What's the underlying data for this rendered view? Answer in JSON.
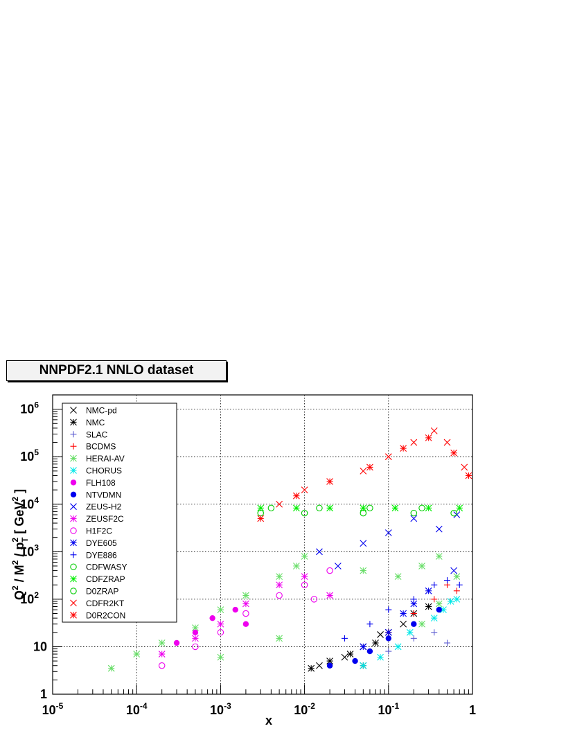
{
  "chart_data": {
    "type": "scatter",
    "title": "NNPDF2.1 NNLO dataset",
    "xlabel": "x",
    "ylabel_parts": {
      "q": "Q",
      "sq1": "2",
      "m": " / M",
      "sq2": "2",
      "p": " / p",
      "sq3": "2",
      "t": "T",
      "gev": " [ GeV",
      "sq4": "2",
      "close": " ]"
    },
    "xscale": "log",
    "yscale": "log",
    "xlim": [
      1e-05,
      1
    ],
    "ylim": [
      1,
      2000000
    ],
    "grid": true,
    "legend_position": "top-left",
    "x_tick_labels": [
      {
        "base": "10",
        "exp": "-5",
        "value": 1e-05
      },
      {
        "base": "10",
        "exp": "-4",
        "value": 0.0001
      },
      {
        "base": "10",
        "exp": "-3",
        "value": 0.001
      },
      {
        "base": "10",
        "exp": "-2",
        "value": 0.01
      },
      {
        "base": "10",
        "exp": "-1",
        "value": 0.1
      },
      {
        "base": "1",
        "exp": "",
        "value": 1
      }
    ],
    "y_tick_labels": [
      {
        "base": "1",
        "exp": "",
        "value": 1
      },
      {
        "base": "10",
        "exp": "",
        "value": 10
      },
      {
        "base": "10",
        "exp": "2",
        "value": 100
      },
      {
        "base": "10",
        "exp": "3",
        "value": 1000
      },
      {
        "base": "10",
        "exp": "4",
        "value": 10000
      },
      {
        "base": "10",
        "exp": "5",
        "value": 100000
      },
      {
        "base": "10",
        "exp": "6",
        "value": 1000000
      }
    ],
    "series": [
      {
        "name": "NMC-pd",
        "marker": "x",
        "color": "#000000"
      },
      {
        "name": "NMC",
        "marker": "star",
        "color": "#000000"
      },
      {
        "name": "SLAC",
        "marker": "plus",
        "color": "#5a5ad0"
      },
      {
        "name": "BCDMS",
        "marker": "plus",
        "color": "#ff0000"
      },
      {
        "name": "HERAI-AV",
        "marker": "star",
        "color": "#66dd66"
      },
      {
        "name": "CHORUS",
        "marker": "star",
        "color": "#00e8e8"
      },
      {
        "name": "FLH108",
        "marker": "dot",
        "color": "#ee00ee"
      },
      {
        "name": "NTVDMN",
        "marker": "dot",
        "color": "#0000ee"
      },
      {
        "name": "ZEUS-H2",
        "marker": "x",
        "color": "#0000ee"
      },
      {
        "name": "ZEUSF2C",
        "marker": "star",
        "color": "#ee00ee"
      },
      {
        "name": "H1F2C",
        "marker": "circle",
        "color": "#ee00ee"
      },
      {
        "name": "DYE605",
        "marker": "star",
        "color": "#0000ee"
      },
      {
        "name": "DYE886",
        "marker": "plus",
        "color": "#0000ee"
      },
      {
        "name": "CDFWASY",
        "marker": "circle",
        "color": "#00cc00"
      },
      {
        "name": "CDFZRAP",
        "marker": "star",
        "color": "#00ee00"
      },
      {
        "name": "D0ZRAP",
        "marker": "circle",
        "color": "#00cc00"
      },
      {
        "name": "CDFR2KT",
        "marker": "x",
        "color": "#ff0000"
      },
      {
        "name": "D0R2CON",
        "marker": "star",
        "color": "#ff0000"
      }
    ],
    "points": [
      {
        "series": 0,
        "x": 0.015,
        "y": 4
      },
      {
        "series": 0,
        "x": 0.03,
        "y": 6
      },
      {
        "series": 0,
        "x": 0.05,
        "y": 10
      },
      {
        "series": 0,
        "x": 0.08,
        "y": 18
      },
      {
        "series": 0,
        "x": 0.15,
        "y": 30
      },
      {
        "series": 1,
        "x": 0.012,
        "y": 3.5
      },
      {
        "series": 1,
        "x": 0.02,
        "y": 5
      },
      {
        "series": 1,
        "x": 0.035,
        "y": 7
      },
      {
        "series": 1,
        "x": 0.05,
        "y": 4
      },
      {
        "series": 1,
        "x": 0.07,
        "y": 12
      },
      {
        "series": 1,
        "x": 0.1,
        "y": 20
      },
      {
        "series": 1,
        "x": 0.2,
        "y": 50
      },
      {
        "series": 1,
        "x": 0.3,
        "y": 70
      },
      {
        "series": 2,
        "x": 0.1,
        "y": 8
      },
      {
        "series": 2,
        "x": 0.2,
        "y": 15
      },
      {
        "series": 2,
        "x": 0.35,
        "y": 20
      },
      {
        "series": 2,
        "x": 0.5,
        "y": 12
      },
      {
        "series": 3,
        "x": 0.1,
        "y": 20
      },
      {
        "series": 3,
        "x": 0.2,
        "y": 50
      },
      {
        "series": 3,
        "x": 0.35,
        "y": 100
      },
      {
        "series": 3,
        "x": 0.5,
        "y": 200
      },
      {
        "series": 3,
        "x": 0.65,
        "y": 150
      },
      {
        "series": 4,
        "x": 5e-05,
        "y": 3.5
      },
      {
        "series": 4,
        "x": 0.0001,
        "y": 7
      },
      {
        "series": 4,
        "x": 0.0002,
        "y": 12
      },
      {
        "series": 4,
        "x": 0.0005,
        "y": 25
      },
      {
        "series": 4,
        "x": 0.001,
        "y": 60
      },
      {
        "series": 4,
        "x": 0.002,
        "y": 120
      },
      {
        "series": 4,
        "x": 0.005,
        "y": 300
      },
      {
        "series": 4,
        "x": 0.008,
        "y": 500
      },
      {
        "series": 4,
        "x": 0.01,
        "y": 800
      },
      {
        "series": 4,
        "x": 0.05,
        "y": 400
      },
      {
        "series": 4,
        "x": 0.13,
        "y": 300
      },
      {
        "series": 4,
        "x": 0.25,
        "y": 500
      },
      {
        "series": 4,
        "x": 0.4,
        "y": 800
      },
      {
        "series": 4,
        "x": 0.65,
        "y": 300
      },
      {
        "series": 4,
        "x": 0.25,
        "y": 30
      },
      {
        "series": 4,
        "x": 0.4,
        "y": 80
      },
      {
        "series": 4,
        "x": 0.001,
        "y": 6
      },
      {
        "series": 4,
        "x": 0.005,
        "y": 15
      },
      {
        "series": 5,
        "x": 0.05,
        "y": 4
      },
      {
        "series": 5,
        "x": 0.08,
        "y": 6
      },
      {
        "series": 5,
        "x": 0.13,
        "y": 10
      },
      {
        "series": 5,
        "x": 0.18,
        "y": 20
      },
      {
        "series": 5,
        "x": 0.35,
        "y": 40
      },
      {
        "series": 5,
        "x": 0.45,
        "y": 60
      },
      {
        "series": 5,
        "x": 0.55,
        "y": 90
      },
      {
        "series": 5,
        "x": 0.65,
        "y": 100
      },
      {
        "series": 6,
        "x": 0.0003,
        "y": 12
      },
      {
        "series": 6,
        "x": 0.0005,
        "y": 20
      },
      {
        "series": 6,
        "x": 0.0008,
        "y": 40
      },
      {
        "series": 6,
        "x": 0.0015,
        "y": 60
      },
      {
        "series": 6,
        "x": 0.002,
        "y": 30
      },
      {
        "series": 7,
        "x": 0.02,
        "y": 4
      },
      {
        "series": 7,
        "x": 0.04,
        "y": 5
      },
      {
        "series": 7,
        "x": 0.06,
        "y": 8
      },
      {
        "series": 7,
        "x": 0.1,
        "y": 15
      },
      {
        "series": 7,
        "x": 0.2,
        "y": 30
      },
      {
        "series": 7,
        "x": 0.4,
        "y": 60
      },
      {
        "series": 8,
        "x": 0.015,
        "y": 1000
      },
      {
        "series": 8,
        "x": 0.025,
        "y": 500
      },
      {
        "series": 8,
        "x": 0.05,
        "y": 1500
      },
      {
        "series": 8,
        "x": 0.1,
        "y": 2500
      },
      {
        "series": 8,
        "x": 0.2,
        "y": 5000
      },
      {
        "series": 8,
        "x": 0.4,
        "y": 3000
      },
      {
        "series": 8,
        "x": 0.65,
        "y": 6000
      },
      {
        "series": 8,
        "x": 0.6,
        "y": 400
      },
      {
        "series": 9,
        "x": 0.0002,
        "y": 7
      },
      {
        "series": 9,
        "x": 0.0005,
        "y": 15
      },
      {
        "series": 9,
        "x": 0.001,
        "y": 30
      },
      {
        "series": 9,
        "x": 0.002,
        "y": 80
      },
      {
        "series": 9,
        "x": 0.005,
        "y": 200
      },
      {
        "series": 9,
        "x": 0.01,
        "y": 300
      },
      {
        "series": 9,
        "x": 0.02,
        "y": 120
      },
      {
        "series": 10,
        "x": 0.0002,
        "y": 4
      },
      {
        "series": 10,
        "x": 0.0005,
        "y": 10
      },
      {
        "series": 10,
        "x": 0.001,
        "y": 20
      },
      {
        "series": 10,
        "x": 0.002,
        "y": 50
      },
      {
        "series": 10,
        "x": 0.005,
        "y": 120
      },
      {
        "series": 10,
        "x": 0.01,
        "y": 200
      },
      {
        "series": 10,
        "x": 0.02,
        "y": 400
      },
      {
        "series": 10,
        "x": 0.013,
        "y": 100
      },
      {
        "series": 11,
        "x": 0.05,
        "y": 10
      },
      {
        "series": 11,
        "x": 0.1,
        "y": 20
      },
      {
        "series": 11,
        "x": 0.15,
        "y": 50
      },
      {
        "series": 11,
        "x": 0.2,
        "y": 80
      },
      {
        "series": 11,
        "x": 0.3,
        "y": 150
      },
      {
        "series": 12,
        "x": 0.03,
        "y": 15
      },
      {
        "series": 12,
        "x": 0.06,
        "y": 30
      },
      {
        "series": 12,
        "x": 0.1,
        "y": 60
      },
      {
        "series": 12,
        "x": 0.2,
        "y": 100
      },
      {
        "series": 12,
        "x": 0.35,
        "y": 200
      },
      {
        "series": 12,
        "x": 0.5,
        "y": 250
      },
      {
        "series": 12,
        "x": 0.7,
        "y": 200
      },
      {
        "series": 13,
        "x": 0.003,
        "y": 6500
      },
      {
        "series": 13,
        "x": 0.01,
        "y": 6500
      },
      {
        "series": 13,
        "x": 0.05,
        "y": 6500
      },
      {
        "series": 13,
        "x": 0.2,
        "y": 6500
      },
      {
        "series": 13,
        "x": 0.6,
        "y": 6500
      },
      {
        "series": 14,
        "x": 0.003,
        "y": 8300
      },
      {
        "series": 14,
        "x": 0.008,
        "y": 8300
      },
      {
        "series": 14,
        "x": 0.02,
        "y": 8300
      },
      {
        "series": 14,
        "x": 0.05,
        "y": 8300
      },
      {
        "series": 14,
        "x": 0.12,
        "y": 8300
      },
      {
        "series": 14,
        "x": 0.3,
        "y": 8300
      },
      {
        "series": 14,
        "x": 0.7,
        "y": 8300
      },
      {
        "series": 15,
        "x": 0.004,
        "y": 8300
      },
      {
        "series": 15,
        "x": 0.015,
        "y": 8300
      },
      {
        "series": 15,
        "x": 0.06,
        "y": 8300
      },
      {
        "series": 15,
        "x": 0.25,
        "y": 8300
      },
      {
        "series": 16,
        "x": 0.005,
        "y": 10000
      },
      {
        "series": 16,
        "x": 0.01,
        "y": 20000
      },
      {
        "series": 16,
        "x": 0.05,
        "y": 50000
      },
      {
        "series": 16,
        "x": 0.1,
        "y": 100000
      },
      {
        "series": 16,
        "x": 0.2,
        "y": 200000
      },
      {
        "series": 16,
        "x": 0.35,
        "y": 350000
      },
      {
        "series": 16,
        "x": 0.5,
        "y": 200000
      },
      {
        "series": 16,
        "x": 0.8,
        "y": 60000
      },
      {
        "series": 17,
        "x": 0.003,
        "y": 5000
      },
      {
        "series": 17,
        "x": 0.008,
        "y": 15000
      },
      {
        "series": 17,
        "x": 0.02,
        "y": 30000
      },
      {
        "series": 17,
        "x": 0.06,
        "y": 60000
      },
      {
        "series": 17,
        "x": 0.15,
        "y": 150000
      },
      {
        "series": 17,
        "x": 0.3,
        "y": 250000
      },
      {
        "series": 17,
        "x": 0.6,
        "y": 120000
      },
      {
        "series": 17,
        "x": 0.9,
        "y": 40000
      }
    ]
  }
}
